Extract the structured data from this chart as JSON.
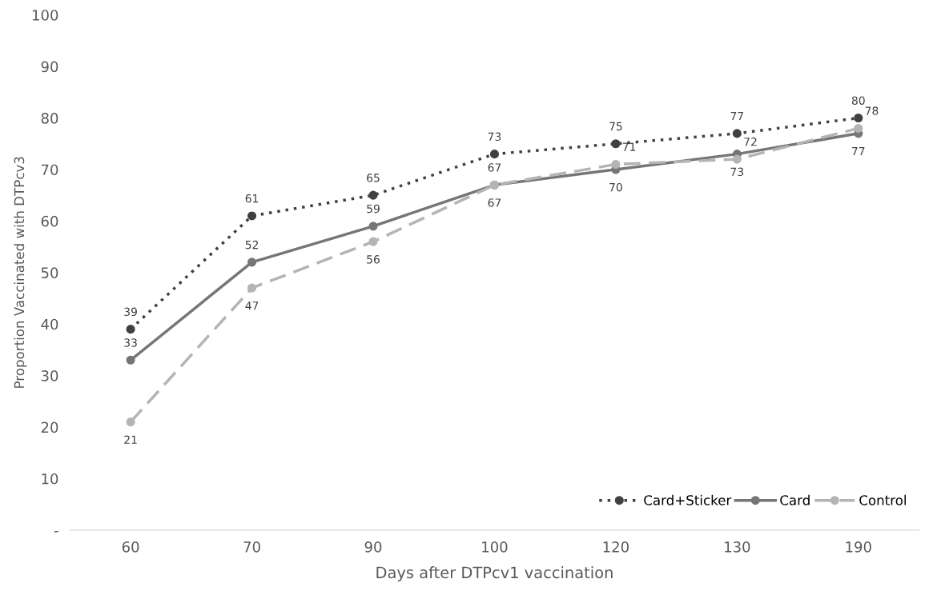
{
  "chart_data": {
    "type": "line",
    "xlabel": "Days after DTPcv1 vaccination",
    "ylabel": "Proportion Vaccinated with DTPcv3",
    "categories": [
      "60",
      "70",
      "90",
      "100",
      "120",
      "130",
      "190"
    ],
    "series": [
      {
        "name": "Card+Sticker",
        "color": "#404040",
        "line_style": "dotted",
        "values": [
          39,
          61,
          65,
          73,
          75,
          77,
          80
        ]
      },
      {
        "name": "Card",
        "color": "#767676",
        "line_style": "solid",
        "values": [
          33,
          52,
          59,
          67,
          70,
          73,
          77
        ]
      },
      {
        "name": "Control",
        "color": "#b4b4b4",
        "line_style": "dashed",
        "values": [
          21,
          47,
          56,
          67,
          71,
          72,
          78
        ]
      }
    ],
    "ylim": [
      0,
      100
    ],
    "yticks": [
      {
        "value": 0,
        "label": "-"
      },
      10,
      20,
      30,
      40,
      50,
      60,
      70,
      80,
      90,
      100
    ],
    "data_labels": true,
    "grid": false,
    "legend": "bottom right",
    "marker": "circle"
  }
}
